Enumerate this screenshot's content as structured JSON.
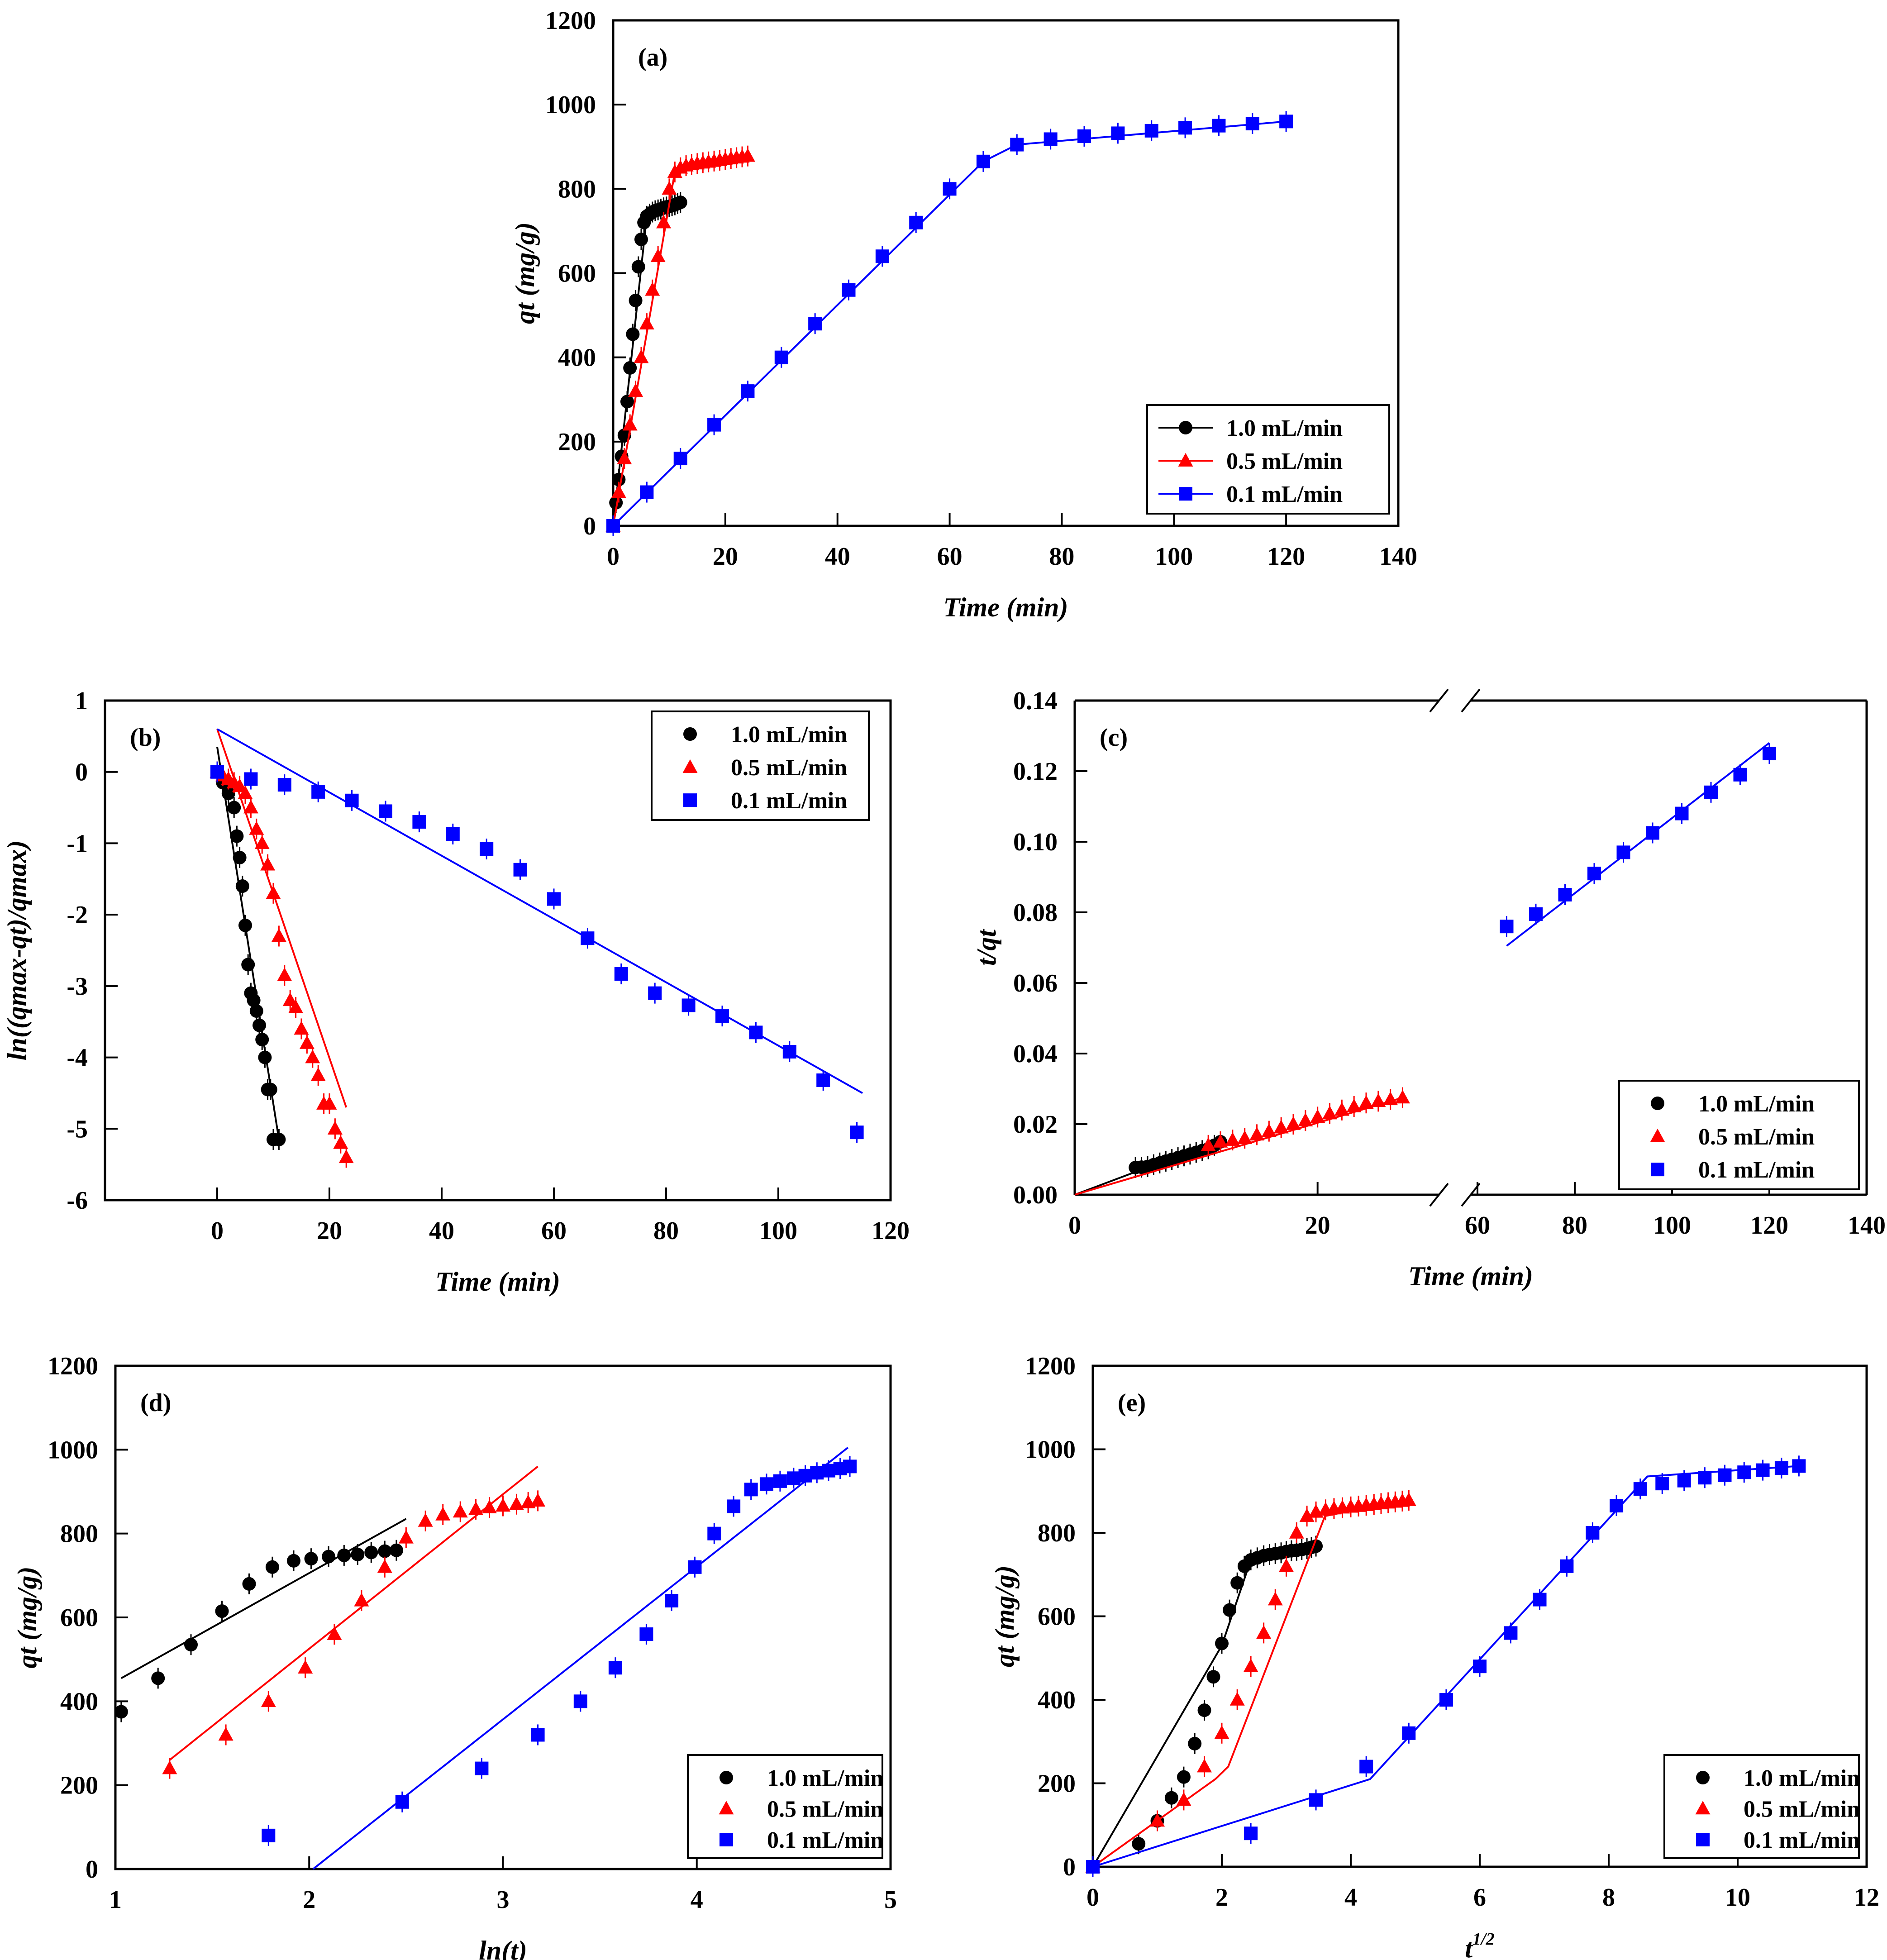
{
  "colors": {
    "black": "#000000",
    "red": "#ff0000",
    "blue": "#0000ff"
  },
  "chart_data": [
    {
      "id": "a",
      "type": "line",
      "panel_label": "(a)",
      "xlabel": "Time (min)",
      "ylabel": "qt (mg/g)",
      "xlim": [
        0,
        140
      ],
      "ylim": [
        0,
        1200
      ],
      "xticks": [
        "0",
        "20",
        "40",
        "60",
        "80",
        "100",
        "120",
        "140"
      ],
      "yticks": [
        "0",
        "200",
        "400",
        "600",
        "800",
        "1000",
        "1200"
      ],
      "legend_position": "bottom-right",
      "series": [
        {
          "name": "1.0 mL/min",
          "color": "black",
          "marker": "circle",
          "x": [
            0,
            0.5,
            1,
            1.5,
            2,
            2.5,
            3,
            3.5,
            4,
            4.5,
            5,
            5.5,
            6,
            6.5,
            7,
            7.5,
            8,
            8.5,
            9,
            9.5,
            10,
            10.5,
            11,
            11.5,
            12
          ],
          "y": [
            0,
            55,
            110,
            165,
            215,
            295,
            375,
            455,
            535,
            615,
            680,
            720,
            735,
            740,
            745,
            748,
            750,
            752,
            755,
            757,
            758,
            760,
            762,
            765,
            768
          ],
          "fit_x": [
            0,
            6,
            12
          ],
          "fit_y": [
            0,
            735,
            768
          ]
        },
        {
          "name": "0.5 mL/min",
          "color": "red",
          "marker": "triangle",
          "x": [
            0,
            1,
            2,
            3,
            4,
            5,
            6,
            7,
            8,
            9,
            10,
            11,
            12,
            13,
            14,
            15,
            16,
            17,
            18,
            19,
            20,
            21,
            22,
            23,
            24
          ],
          "y": [
            0,
            80,
            160,
            240,
            320,
            400,
            480,
            560,
            640,
            720,
            800,
            840,
            850,
            855,
            858,
            860,
            862,
            864,
            866,
            868,
            870,
            872,
            874,
            876,
            878
          ],
          "fit_x": [
            0,
            11,
            24
          ],
          "fit_y": [
            0,
            840,
            878
          ]
        },
        {
          "name": "0.1 mL/min",
          "color": "blue",
          "marker": "square",
          "x": [
            0,
            6,
            12,
            18,
            24,
            30,
            36,
            42,
            48,
            54,
            60,
            66,
            72,
            78,
            84,
            90,
            96,
            102,
            108,
            114,
            120
          ],
          "y": [
            0,
            80,
            160,
            240,
            320,
            400,
            480,
            560,
            640,
            720,
            800,
            865,
            905,
            918,
            925,
            932,
            938,
            945,
            950,
            955,
            960
          ],
          "fit_x": [
            0,
            66,
            72,
            120
          ],
          "fit_y": [
            0,
            865,
            905,
            960
          ]
        }
      ]
    },
    {
      "id": "b",
      "type": "scatter",
      "panel_label": "(b)",
      "xlabel": "Time (min)",
      "ylabel": "ln((qmax-qt)/qmax)",
      "xlim": [
        -20,
        120
      ],
      "ylim": [
        -6,
        1
      ],
      "xticks": [
        "0",
        "20",
        "40",
        "60",
        "80",
        "100",
        "120"
      ],
      "yticks": [
        "-6",
        "-5",
        "-4",
        "-3",
        "-2",
        "-1",
        "0",
        "1"
      ],
      "legend_position": "top-right",
      "series": [
        {
          "name": "1.0 mL/min",
          "color": "black",
          "marker": "circle",
          "x": [
            0,
            1,
            2,
            3,
            3.5,
            4,
            4.5,
            5,
            5.5,
            6,
            6.5,
            7,
            7.5,
            8,
            8.5,
            9,
            9.5,
            10,
            11
          ],
          "y": [
            0,
            -0.15,
            -0.3,
            -0.5,
            -0.9,
            -1.2,
            -1.6,
            -2.15,
            -2.7,
            -3.1,
            -3.2,
            -3.35,
            -3.55,
            -3.75,
            -4.0,
            -4.45,
            -4.45,
            -5.15,
            -5.15
          ],
          "fit_x": [
            0,
            11
          ],
          "fit_y": [
            0.35,
            -5.15
          ]
        },
        {
          "name": "0.5 mL/min",
          "color": "red",
          "marker": "triangle",
          "x": [
            0,
            1,
            2,
            3,
            4,
            5,
            6,
            7,
            8,
            9,
            10,
            11,
            12,
            13,
            14,
            15,
            16,
            17,
            18,
            19,
            20,
            21,
            22,
            23
          ],
          "y": [
            0,
            -0.05,
            -0.1,
            -0.15,
            -0.2,
            -0.3,
            -0.5,
            -0.8,
            -1.0,
            -1.3,
            -1.7,
            -2.3,
            -2.85,
            -3.2,
            -3.3,
            -3.6,
            -3.8,
            -4.0,
            -4.25,
            -4.65,
            -4.65,
            -5.0,
            -5.2,
            -5.4
          ],
          "fit_x": [
            0,
            23
          ],
          "fit_y": [
            0.6,
            -4.7
          ]
        },
        {
          "name": "0.1 mL/min",
          "color": "blue",
          "marker": "square",
          "x": [
            0,
            6,
            12,
            18,
            24,
            30,
            36,
            42,
            48,
            54,
            60,
            66,
            72,
            78,
            84,
            90,
            96,
            102,
            108,
            114
          ],
          "y": [
            0,
            -0.1,
            -0.18,
            -0.28,
            -0.4,
            -0.55,
            -0.7,
            -0.87,
            -1.08,
            -1.37,
            -1.78,
            -2.33,
            -2.83,
            -3.1,
            -3.27,
            -3.42,
            -3.65,
            -3.92,
            -4.32,
            -5.05
          ],
          "fit_x": [
            0,
            115
          ],
          "fit_y": [
            0.6,
            -4.5
          ]
        }
      ]
    },
    {
      "id": "c",
      "type": "scatter",
      "panel_label": "(c)",
      "xlabel": "Time (min)",
      "ylabel": "t/qt",
      "xlim_left": [
        0,
        30
      ],
      "xlim_right": [
        60,
        140
      ],
      "ylim": [
        0,
        0.14
      ],
      "xticks_left": [
        "0",
        "20"
      ],
      "xticks_right": [
        "60",
        "80",
        "100",
        "120",
        "140"
      ],
      "yticks": [
        "0.00",
        "0.02",
        "0.04",
        "0.06",
        "0.08",
        "0.10",
        "0.12",
        "0.14"
      ],
      "legend_position": "bottom-right",
      "series": [
        {
          "name": "1.0 mL/min",
          "color": "black",
          "marker": "circle",
          "x": [
            5,
            5.5,
            6,
            6.5,
            7,
            7.5,
            8,
            8.5,
            9,
            9.5,
            10,
            10.5,
            11,
            11.5,
            12
          ],
          "y": [
            0.0077,
            0.0078,
            0.008,
            0.0085,
            0.009,
            0.0095,
            0.01,
            0.0105,
            0.011,
            0.0115,
            0.012,
            0.0125,
            0.013,
            0.014,
            0.015
          ],
          "fit_x": [
            0,
            12
          ],
          "fit_y": [
            0,
            0.0155
          ]
        },
        {
          "name": "0.5 mL/min",
          "color": "red",
          "marker": "triangle",
          "x": [
            11,
            12,
            13,
            14,
            15,
            16,
            17,
            18,
            19,
            20,
            21,
            22,
            23,
            24,
            25,
            26,
            27
          ],
          "y": [
            0.014,
            0.015,
            0.0155,
            0.016,
            0.017,
            0.018,
            0.019,
            0.02,
            0.021,
            0.022,
            0.023,
            0.024,
            0.025,
            0.026,
            0.0265,
            0.027,
            0.0275
          ],
          "fit_x": [
            0,
            27
          ],
          "fit_y": [
            0,
            0.0275
          ]
        },
        {
          "name": "0.1 mL/min",
          "color": "blue",
          "marker": "square",
          "x": [
            66,
            72,
            78,
            84,
            90,
            96,
            102,
            108,
            114,
            120
          ],
          "y": [
            0.076,
            0.0795,
            0.085,
            0.091,
            0.097,
            0.1025,
            0.108,
            0.114,
            0.119,
            0.125
          ],
          "fit_x": [
            66,
            120
          ],
          "fit_y": [
            0.0705,
            0.128
          ]
        }
      ]
    },
    {
      "id": "d",
      "type": "scatter",
      "panel_label": "(d)",
      "xlabel": "ln(t)",
      "ylabel": "qt (mg/g)",
      "xlim": [
        1,
        5
      ],
      "ylim": [
        0,
        1200
      ],
      "xticks": [
        "1",
        "2",
        "3",
        "4",
        "5"
      ],
      "yticks": [
        "0",
        "200",
        "400",
        "600",
        "800",
        "1000",
        "1200"
      ],
      "legend_position": "bottom-right",
      "series": [
        {
          "name": "1.0 mL/min",
          "color": "black",
          "marker": "circle",
          "x": [
            1.03,
            1.22,
            1.39,
            1.55,
            1.69,
            1.81,
            1.92,
            2.01,
            2.1,
            2.18,
            2.25,
            2.32,
            2.39,
            2.45
          ],
          "y": [
            375,
            455,
            535,
            615,
            680,
            720,
            735,
            740,
            745,
            748,
            750,
            755,
            758,
            760
          ],
          "fit_x": [
            1.03,
            2.5
          ],
          "fit_y": [
            455,
            835
          ]
        },
        {
          "name": "0.5 mL/min",
          "color": "red",
          "marker": "triangle",
          "x": [
            1.28,
            1.57,
            1.79,
            1.98,
            2.13,
            2.27,
            2.39,
            2.5,
            2.6,
            2.69,
            2.78,
            2.86,
            2.93,
            3.0,
            3.07,
            3.13,
            3.18
          ],
          "y": [
            240,
            320,
            400,
            480,
            560,
            640,
            720,
            790,
            830,
            845,
            852,
            858,
            862,
            866,
            870,
            874,
            878
          ],
          "fit_x": [
            1.28,
            3.18
          ],
          "fit_y": [
            260,
            960
          ]
        },
        {
          "name": "0.1 mL/min",
          "color": "blue",
          "marker": "square",
          "x": [
            1.79,
            2.48,
            2.89,
            3.18,
            3.4,
            3.58,
            3.74,
            3.87,
            3.99,
            4.09,
            4.19,
            4.28,
            4.36,
            4.43,
            4.5,
            4.56,
            4.62,
            4.68,
            4.74,
            4.79
          ],
          "y": [
            80,
            160,
            240,
            320,
            400,
            480,
            560,
            640,
            720,
            800,
            865,
            905,
            918,
            925,
            932,
            938,
            945,
            950,
            955,
            960
          ],
          "fit_x": [
            2.02,
            4.78
          ],
          "fit_y": [
            0,
            1005
          ]
        }
      ]
    },
    {
      "id": "e",
      "type": "scatter",
      "panel_label": "(e)",
      "xlabel": "t^1/2",
      "ylabel": "qt (mg/g)",
      "xlim": [
        0,
        12
      ],
      "ylim": [
        0,
        1200
      ],
      "xticks": [
        "0",
        "2",
        "4",
        "6",
        "8",
        "10",
        "12"
      ],
      "yticks": [
        "0",
        "200",
        "400",
        "600",
        "800",
        "1000",
        "1200"
      ],
      "legend_position": "bottom-right",
      "series": [
        {
          "name": "1.0 mL/min",
          "color": "black",
          "marker": "circle",
          "x": [
            0,
            0.71,
            1.0,
            1.22,
            1.41,
            1.58,
            1.73,
            1.87,
            2.0,
            2.12,
            2.24,
            2.35,
            2.45,
            2.55,
            2.65,
            2.74,
            2.83,
            2.92,
            3.0,
            3.08,
            3.16,
            3.24,
            3.32,
            3.39,
            3.46
          ],
          "y": [
            0,
            55,
            110,
            165,
            215,
            295,
            375,
            455,
            535,
            615,
            680,
            720,
            735,
            740,
            745,
            748,
            750,
            752,
            755,
            757,
            758,
            760,
            762,
            765,
            768
          ],
          "fit_x": [
            0,
            2.0,
            2.45,
            3.46
          ],
          "fit_y": [
            0,
            530,
            735,
            770
          ]
        },
        {
          "name": "0.5 mL/min",
          "color": "red",
          "marker": "triangle",
          "x": [
            0,
            1.0,
            1.41,
            1.73,
            2.0,
            2.24,
            2.45,
            2.65,
            2.83,
            3.0,
            3.16,
            3.32,
            3.46,
            3.61,
            3.74,
            3.87,
            4.0,
            4.12,
            4.24,
            4.36,
            4.47,
            4.58,
            4.69,
            4.8,
            4.9
          ],
          "y": [
            0,
            110,
            160,
            240,
            320,
            400,
            480,
            560,
            640,
            720,
            800,
            840,
            850,
            855,
            858,
            860,
            862,
            864,
            866,
            868,
            870,
            872,
            874,
            876,
            878
          ],
          "fit_x": [
            0,
            1.9,
            2.1,
            3.6,
            4.9
          ],
          "fit_y": [
            0,
            210,
            240,
            840,
            880
          ]
        },
        {
          "name": "0.1 mL/min",
          "color": "blue",
          "marker": "square",
          "x": [
            0,
            2.45,
            3.46,
            4.24,
            4.9,
            5.48,
            6.0,
            6.48,
            6.93,
            7.35,
            7.75,
            8.12,
            8.49,
            8.83,
            9.17,
            9.49,
            9.8,
            10.1,
            10.39,
            10.68,
            10.95
          ],
          "y": [
            0,
            80,
            160,
            240,
            320,
            400,
            480,
            560,
            640,
            720,
            800,
            865,
            905,
            918,
            925,
            932,
            938,
            945,
            950,
            955,
            960
          ],
          "fit_x": [
            0,
            4.3,
            8.6,
            10.95
          ],
          "fit_y": [
            0,
            210,
            935,
            960
          ]
        }
      ]
    }
  ]
}
